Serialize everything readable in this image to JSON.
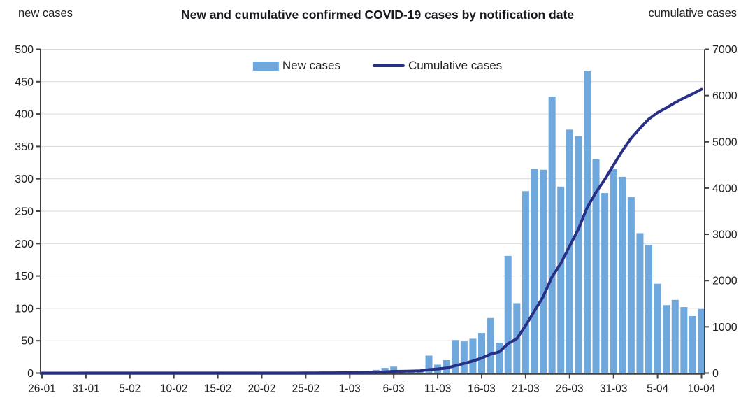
{
  "header": {
    "left_axis_title": "new cases",
    "title": "New and cumulative confirmed COVID-19 cases by notification date",
    "right_axis_title": "cumulative cases"
  },
  "legend": {
    "new_cases_label": "New cases",
    "cumulative_label": "Cumulative cases"
  },
  "colors": {
    "bar": "#6fa8dc",
    "line": "#282f87",
    "grid": "#d9d9d9",
    "axis": "#404040",
    "text": "#1f1f1f"
  },
  "chart_data": {
    "type": "combo",
    "title": "New and cumulative confirmed COVID-19 cases by notification date",
    "grid": "horizontal-left-axis",
    "legend_position": "top-center",
    "left_axis": {
      "label": "new cases",
      "range": [
        0,
        500
      ],
      "tick_step": 50
    },
    "right_axis": {
      "label": "cumulative cases",
      "range": [
        0,
        7000
      ],
      "tick_step": 1000
    },
    "x_tick_labels": [
      "26-01",
      "31-01",
      "5-02",
      "10-02",
      "15-02",
      "20-02",
      "25-02",
      "1-03",
      "6-03",
      "11-03",
      "16-03",
      "21-03",
      "26-03",
      "31-03",
      "5-04",
      "10-04"
    ],
    "x_tick_indices": [
      0,
      5,
      10,
      15,
      20,
      25,
      30,
      35,
      40,
      45,
      50,
      55,
      60,
      65,
      70,
      75
    ],
    "x": [
      "26-01",
      "27-01",
      "28-01",
      "29-01",
      "30-01",
      "31-01",
      "1-02",
      "2-02",
      "3-02",
      "4-02",
      "5-02",
      "6-02",
      "7-02",
      "8-02",
      "9-02",
      "10-02",
      "11-02",
      "12-02",
      "13-02",
      "14-02",
      "15-02",
      "16-02",
      "17-02",
      "18-02",
      "19-02",
      "20-02",
      "21-02",
      "22-02",
      "23-02",
      "24-02",
      "25-02",
      "26-02",
      "27-02",
      "28-02",
      "29-02",
      "1-03",
      "2-03",
      "3-03",
      "4-03",
      "5-03",
      "6-03",
      "7-03",
      "8-03",
      "9-03",
      "10-03",
      "11-03",
      "12-03",
      "13-03",
      "14-03",
      "15-03",
      "16-03",
      "17-03",
      "18-03",
      "19-03",
      "20-03",
      "21-03",
      "22-03",
      "23-03",
      "24-03",
      "25-03",
      "26-03",
      "27-03",
      "28-03",
      "29-03",
      "30-03",
      "31-03",
      "1-04",
      "2-04",
      "3-04",
      "4-04",
      "5-04",
      "6-04",
      "7-04",
      "8-04",
      "9-04",
      "10-04"
    ],
    "series": [
      {
        "name": "New cases",
        "type": "bar",
        "axis": "left",
        "values": [
          0,
          0,
          0,
          0,
          0,
          2,
          0,
          0,
          0,
          0,
          0,
          0,
          0,
          0,
          0,
          0,
          0,
          0,
          0,
          0,
          0,
          0,
          0,
          0,
          0,
          0,
          0,
          0,
          0,
          0,
          2,
          0,
          1,
          1,
          2,
          1,
          2,
          3,
          5,
          8,
          10,
          3,
          4,
          5,
          27,
          13,
          20,
          51,
          49,
          53,
          62,
          85,
          47,
          181,
          108,
          281,
          315,
          314,
          427,
          288,
          376,
          366,
          467,
          330,
          278,
          315,
          303,
          272,
          216,
          198,
          138,
          105,
          113,
          102,
          88,
          99
        ]
      },
      {
        "name": "Cumulative cases",
        "type": "line",
        "axis": "right",
        "values": [
          0,
          0,
          0,
          0,
          0,
          2,
          2,
          2,
          2,
          2,
          2,
          2,
          2,
          2,
          2,
          2,
          2,
          2,
          2,
          2,
          2,
          2,
          2,
          2,
          2,
          2,
          2,
          2,
          2,
          2,
          4,
          4,
          5,
          6,
          8,
          9,
          11,
          14,
          19,
          27,
          37,
          40,
          44,
          49,
          76,
          89,
          109,
          160,
          209,
          262,
          324,
          409,
          456,
          637,
          745,
          1026,
          1341,
          1655,
          2082,
          2370,
          2746,
          3112,
          3579,
          3909,
          4187,
          4502,
          4805,
          5077,
          5293,
          5491,
          5629,
          5734,
          5847,
          5949,
          6037,
          6136
        ]
      }
    ]
  }
}
